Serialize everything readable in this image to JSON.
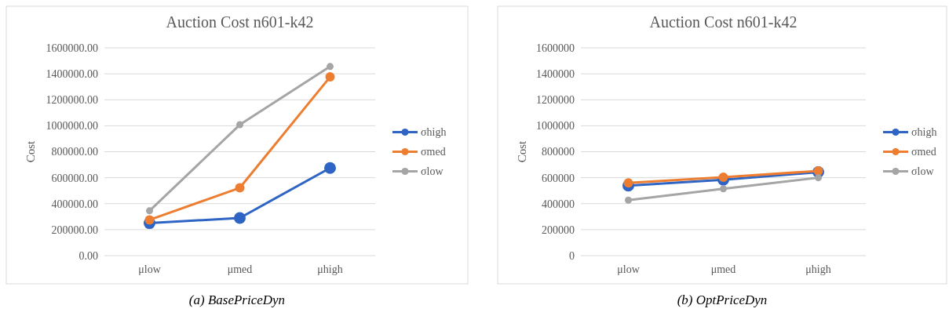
{
  "chart_data": [
    {
      "type": "line",
      "title": "Auction Cost n601-k42",
      "ylabel": "Cost",
      "categories": [
        "μlow",
        "μmed",
        "μhigh"
      ],
      "ylim": [
        0,
        1600000
      ],
      "yticks": [
        {
          "value": 0,
          "label": "0.00"
        },
        {
          "value": 200000,
          "label": "200000.00"
        },
        {
          "value": 400000,
          "label": "400000.00"
        },
        {
          "value": 600000,
          "label": "600000.00"
        },
        {
          "value": 800000,
          "label": "800000.00"
        },
        {
          "value": 1000000,
          "label": "1000000.00"
        },
        {
          "value": 1200000,
          "label": "1200000.00"
        },
        {
          "value": 1400000,
          "label": "1400000.00"
        },
        {
          "value": 1600000,
          "label": "1600000.00"
        }
      ],
      "grid": "y",
      "legend": "right",
      "marker": "circle",
      "annotations": [
        "(a) BasePriceDyn"
      ],
      "series": [
        {
          "name": "σhigh",
          "color": "#2e64c4",
          "values": [
            250000,
            290000,
            675000
          ]
        },
        {
          "name": "σmed",
          "color": "#ed7d31",
          "values": [
            275000,
            522000,
            1376000
          ]
        },
        {
          "name": "σlow",
          "color": "#a5a5a5",
          "values": [
            345000,
            1008000,
            1456000
          ]
        }
      ]
    },
    {
      "type": "line",
      "title": "Auction Cost n601-k42",
      "ylabel": "Cost",
      "categories": [
        "μlow",
        "μmed",
        "μhigh"
      ],
      "ylim": [
        0,
        1600000
      ],
      "yticks": [
        0,
        200000,
        400000,
        600000,
        800000,
        1000000,
        1200000,
        1400000,
        1600000
      ],
      "grid": "y",
      "legend": "right",
      "marker": "circle",
      "annotations": [
        "(b) OptPriceDyn"
      ],
      "series": [
        {
          "name": "σhigh",
          "color": "#2e64c4",
          "values": [
            539000,
            584000,
            643000
          ]
        },
        {
          "name": "σmed",
          "color": "#ed7d31",
          "values": [
            560000,
            604000,
            652000
          ]
        },
        {
          "name": "σlow",
          "color": "#a5a5a5",
          "values": [
            427000,
            515000,
            600000
          ]
        }
      ]
    }
  ]
}
